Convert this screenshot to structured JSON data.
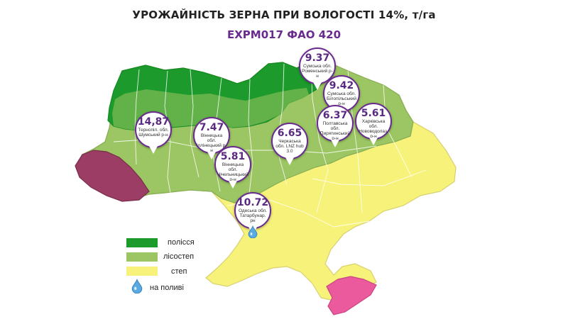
{
  "title": "УРОЖАЙНІСТЬ ЗЕРНА ПРИ ВОЛОГОСТІ 14%, т/га",
  "subtitle": "EXPM017 ФАО 420",
  "colors": {
    "polissia": "#1c9a2c",
    "lisostep": "#9cc663",
    "step": "#f6f27a",
    "carpathians": "#9b3d64",
    "crimea": "#ea5a9c",
    "accent": "#6a2b8f"
  },
  "pins": [
    {
      "value": "14,87",
      "location": "Тернопіл. обл. Шумський р-н"
    },
    {
      "value": "7.47",
      "location": "Вінницька обл. Іллінецький р-н"
    },
    {
      "value": "5.81",
      "location": "Вінницька обл. Чічельницький р-н"
    },
    {
      "value": "6.65",
      "location": "Черкаська обл. LNZ hub 3.0"
    },
    {
      "value": "10.72",
      "location": "Одеська обл. Татарбунар. рн"
    },
    {
      "value": "9.37",
      "location": "Сумська обл. Роменський р-н"
    },
    {
      "value": "9.42",
      "location": "Сумська обл. Білопільський р-н"
    },
    {
      "value": "6.37",
      "location": "Полтавська обл. Пирятинський р-н"
    },
    {
      "value": "5.61",
      "location": "Харківська обл. Нововодолаз. р-н"
    }
  ],
  "legend": [
    {
      "label": "полісся",
      "color": "#1c9a2c"
    },
    {
      "label": "лісостеп",
      "color": "#9cc663"
    },
    {
      "label": "степ",
      "color": "#f6f27a"
    }
  ],
  "legend_irrigation": {
    "label": "на поливі",
    "icon": "water-drop-icon"
  }
}
